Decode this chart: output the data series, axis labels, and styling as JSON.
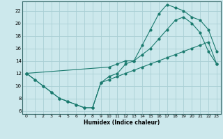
{
  "bg_color": "#cce8ec",
  "grid_color": "#aacfd5",
  "line_color": "#1a7a6e",
  "xlabel": "Humidex (Indice chaleur)",
  "xlim": [
    -0.5,
    23.5
  ],
  "ylim": [
    5.5,
    23.5
  ],
  "yticks": [
    6,
    8,
    10,
    12,
    14,
    16,
    18,
    20,
    22
  ],
  "xticks": [
    0,
    1,
    2,
    3,
    4,
    5,
    6,
    7,
    8,
    9,
    10,
    11,
    12,
    13,
    14,
    15,
    16,
    17,
    18,
    19,
    20,
    21,
    22,
    23
  ],
  "line1_x": [
    0,
    1,
    2,
    3,
    4,
    5,
    6,
    7,
    8,
    9,
    10,
    11,
    12,
    13,
    14,
    15,
    16,
    17,
    18,
    19,
    20,
    21,
    22,
    23
  ],
  "line1_y": [
    12,
    11,
    10,
    9,
    8,
    7.5,
    7,
    6.5,
    6.5,
    10.5,
    11,
    11.5,
    12,
    12.5,
    13,
    13.5,
    14,
    14.5,
    15,
    15.5,
    16,
    16.5,
    17,
    13.5
  ],
  "line2_x": [
    0,
    1,
    2,
    3,
    4,
    5,
    6,
    7,
    8,
    9,
    10,
    11,
    12,
    13,
    14,
    15,
    16,
    17,
    18,
    19,
    20,
    21,
    22,
    23
  ],
  "line2_y": [
    12,
    11,
    10,
    9,
    8,
    7.5,
    7,
    6.5,
    6.5,
    10.5,
    11.5,
    12,
    13.5,
    14,
    16.5,
    19,
    21.5,
    23,
    22.5,
    22,
    21,
    20.5,
    19,
    15.5
  ],
  "line3_x": [
    0,
    10,
    11,
    12,
    13,
    14,
    15,
    16,
    17,
    18,
    19,
    20,
    21,
    22,
    23
  ],
  "line3_y": [
    12,
    13,
    13.5,
    14,
    14,
    15,
    16,
    17.5,
    19,
    20.5,
    21,
    20,
    18.5,
    15.5,
    13.5
  ]
}
